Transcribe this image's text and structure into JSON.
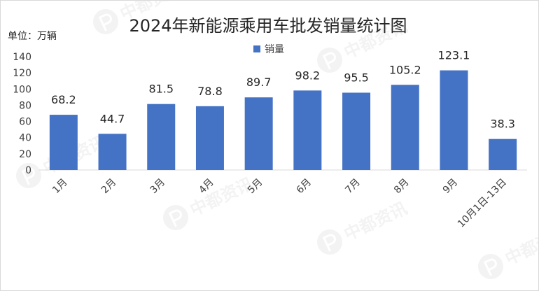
{
  "chart_data": {
    "type": "bar",
    "title": "2024年新能源乘用车批发销量统计图",
    "unit_label": "单位：万辆",
    "categories": [
      "1月",
      "2月",
      "3月",
      "4月",
      "5月",
      "6月",
      "7月",
      "8月",
      "9月",
      "10月1日-13日"
    ],
    "series": [
      {
        "name": "销量",
        "values": [
          68.2,
          44.7,
          81.5,
          78.8,
          89.7,
          98.2,
          95.5,
          105.2,
          123.1,
          38.3
        ],
        "labels": [
          "68.2",
          "44.7",
          "81.5",
          "78.8",
          "89.7",
          "98.2",
          "95.5",
          "105.2",
          "123.1",
          "38.3"
        ]
      }
    ],
    "ylim": [
      0,
      140
    ],
    "yticks": [
      0,
      20,
      40,
      60,
      80,
      100,
      120,
      140
    ],
    "grid": false,
    "legend_position": "top",
    "bar_color": "#4472c4",
    "watermark_text": "中都资讯"
  }
}
